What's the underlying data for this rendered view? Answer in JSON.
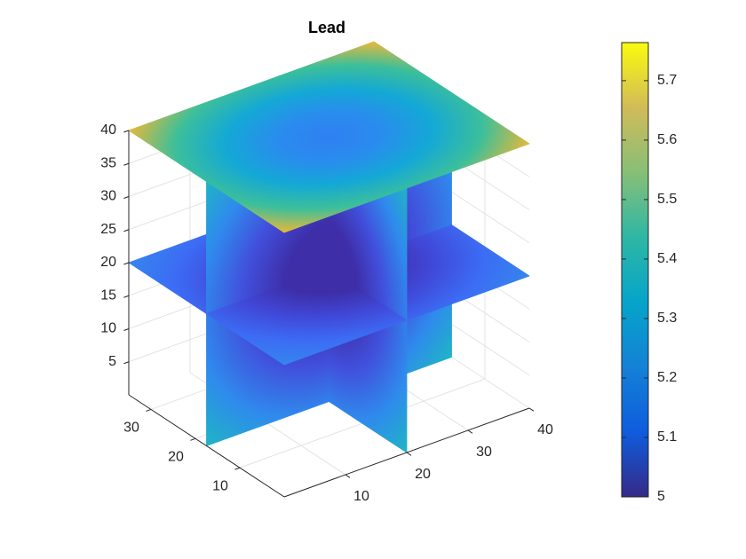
{
  "chart_data": {
    "type": "slice",
    "title": "Lead",
    "xlim": [
      0,
      40
    ],
    "ylim": [
      0,
      35
    ],
    "zlim": [
      0,
      40
    ],
    "xticks": [
      10,
      20,
      30,
      40
    ],
    "yticks": [
      10,
      20,
      30
    ],
    "zticks": [
      5,
      10,
      15,
      20,
      25,
      30,
      35,
      40
    ],
    "grid": true,
    "slices": {
      "x": [
        20
      ],
      "y": [
        17.5
      ],
      "z": [
        20,
        40
      ]
    },
    "slice_colors": {
      "x": [
        [
          "#3e2ea8",
          "#3e2ea8",
          "#4150dc",
          "#2f8aed",
          "#1fb5c4"
        ]
      ],
      "y": [
        [
          "#3e2ea8",
          "#3e2ea8",
          "#4150dc",
          "#2f8aed",
          "#1fb5c4"
        ]
      ],
      "z": [
        [
          "#3e2ea8",
          "#3e2ea8",
          "#4048d8",
          "#3c6cf4",
          "#3585ee"
        ],
        [
          "#2f80f2",
          "#2a8cee",
          "#14a8d6",
          "#3cbf9a",
          "#e8b83a"
        ]
      ]
    },
    "colorbar": {
      "clim": [
        5,
        5.764
      ],
      "ticks": [
        5,
        5.1,
        5.2,
        5.3,
        5.4,
        5.5,
        5.6,
        5.7
      ],
      "colormap": [
        "#352a87",
        "#0f5cdd",
        "#1481d6",
        "#06a4ca",
        "#2eb7a4",
        "#87bf77",
        "#d1bb59",
        "#f9fb0e"
      ]
    }
  }
}
